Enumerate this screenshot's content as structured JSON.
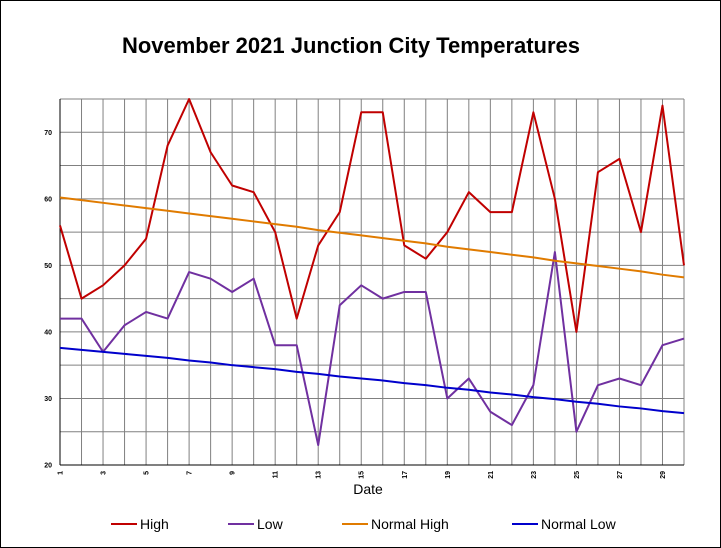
{
  "chart_data": {
    "type": "line",
    "title": "November 2021 Junction City Temperatures",
    "xlabel": "Date",
    "ylabel": "",
    "x": [
      1,
      2,
      3,
      4,
      5,
      6,
      7,
      8,
      9,
      10,
      11,
      12,
      13,
      14,
      15,
      16,
      17,
      18,
      19,
      20,
      21,
      22,
      23,
      24,
      25,
      26,
      27,
      28,
      29,
      30
    ],
    "xlim": [
      1,
      30
    ],
    "ylim": [
      20,
      75
    ],
    "x_tick_labels": [
      "1",
      "3",
      "5",
      "7",
      "9",
      "11",
      "13",
      "15",
      "17",
      "19",
      "21",
      "23",
      "25",
      "27",
      "29"
    ],
    "y_tick_labels": [
      "20",
      "30",
      "40",
      "50",
      "60",
      "70"
    ],
    "grid": true,
    "legend_position": "bottom",
    "series": [
      {
        "name": "High",
        "color": "#c00000",
        "values": [
          56,
          45,
          47,
          50,
          54,
          68,
          75,
          67,
          62,
          61,
          55,
          42,
          53,
          58,
          73,
          73,
          53,
          51,
          55,
          61,
          58,
          58,
          73,
          60,
          40,
          64,
          66,
          55,
          74,
          50
        ]
      },
      {
        "name": "Low",
        "color": "#7030a0",
        "values": [
          42,
          42,
          37,
          41,
          43,
          42,
          49,
          48,
          46,
          48,
          38,
          38,
          23,
          44,
          47,
          45,
          46,
          46,
          30,
          33,
          28,
          26,
          32,
          52,
          25,
          32,
          33,
          32,
          38,
          39
        ]
      },
      {
        "name": "Normal High",
        "color": "#e07b00",
        "values": [
          60.2,
          59.8,
          59.4,
          59.0,
          58.6,
          58.2,
          57.8,
          57.4,
          57.0,
          56.6,
          56.2,
          55.8,
          55.3,
          54.9,
          54.5,
          54.1,
          53.7,
          53.3,
          52.8,
          52.4,
          52.0,
          51.6,
          51.2,
          50.7,
          50.3,
          49.9,
          49.5,
          49.1,
          48.6,
          48.2
        ]
      },
      {
        "name": "Normal Low",
        "color": "#0000cc",
        "values": [
          37.6,
          37.3,
          37.0,
          36.7,
          36.4,
          36.1,
          35.7,
          35.4,
          35.0,
          34.7,
          34.4,
          34.0,
          33.7,
          33.3,
          33.0,
          32.7,
          32.3,
          32.0,
          31.6,
          31.3,
          30.9,
          30.6,
          30.2,
          29.9,
          29.5,
          29.2,
          28.8,
          28.5,
          28.1,
          27.8
        ]
      }
    ]
  }
}
